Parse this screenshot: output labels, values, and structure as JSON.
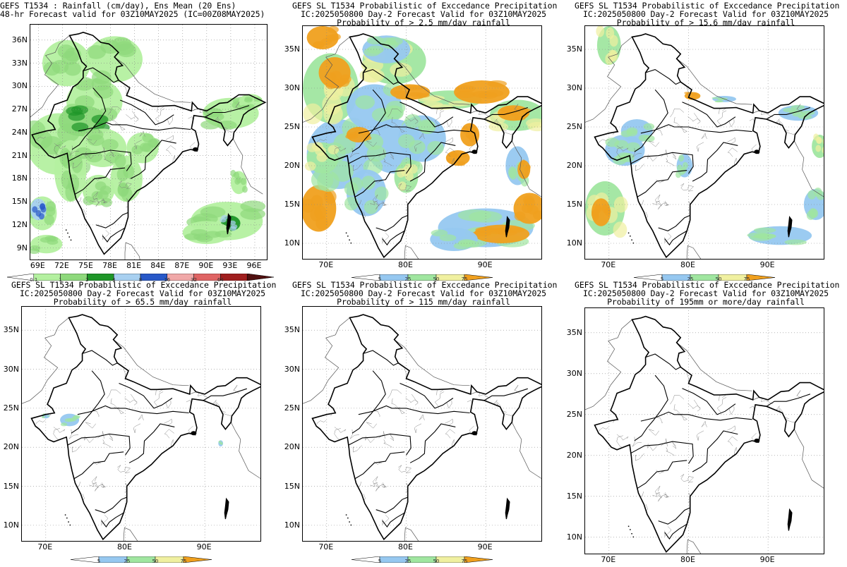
{
  "panels": [
    {
      "id": "mean",
      "title_lines": [
        "GEFS T1534 : Rainfall (cm/day), Ens Mean (20 Ens)",
        "48-hr Forecast valid for 03Z10MAY2025 (IC=00Z08MAY2025)"
      ],
      "lon_ticks": [
        "69E",
        "72E",
        "75E",
        "78E",
        "81E",
        "84E",
        "87E",
        "90E",
        "93E",
        "96E"
      ],
      "lat_ticks": [
        "36N",
        "33N",
        "30N",
        "27N",
        "24N",
        "21N",
        "18N",
        "15N",
        "12N",
        "9N"
      ],
      "colorbar_labels": [
        "0.1",
        "1",
        "2",
        "4",
        "8",
        "16",
        "32",
        "64"
      ],
      "colorbar_colors": [
        "#ffffff",
        "#b4f0a0",
        "#8ed97c",
        "#1e9628",
        "#a8d0f0",
        "#2858c8",
        "#f0a8a8",
        "#e06464",
        "#a01e1e",
        "#501010"
      ]
    },
    {
      "id": "p2_5",
      "title_lines": [
        "GEFS SL T1534 Probabilistic of Exccedance Precipitation",
        "IC:2025050800 Day-2 Forecast Valid for 03Z10MAY2025",
        "Probability of > 2.5 mm/day rainfall"
      ],
      "lon_ticks": [
        "70E",
        "80E",
        "90E"
      ],
      "lat_ticks": [
        "35N",
        "30N",
        "25N",
        "20N",
        "15N",
        "10N"
      ],
      "colorbar_labels": [
        "5",
        "25",
        "50",
        "75"
      ],
      "colorbar_colors": [
        "#ffffff",
        "#96c8f0",
        "#a0e6a0",
        "#f0f0a0",
        "#f0a01e"
      ]
    },
    {
      "id": "p15_6",
      "title_lines": [
        "GEFS SL T1534 Probabilistic of Exccedance Precipitation",
        "IC:2025050800 Day-2 Forecast Valid for 03Z10MAY2025",
        "Probability of > 15.6 mm/day rainfall"
      ],
      "lon_ticks": [
        "70E",
        "80E",
        "90E"
      ],
      "lat_ticks": [
        "35N",
        "30N",
        "25N",
        "20N",
        "15N",
        "10N"
      ],
      "colorbar_labels": [
        "5",
        "25",
        "50",
        "75"
      ],
      "colorbar_colors": [
        "#ffffff",
        "#96c8f0",
        "#a0e6a0",
        "#f0f0a0",
        "#f0a01e"
      ]
    },
    {
      "id": "p65_5",
      "title_lines": [
        "GEFS SL T1534 Probabilistic of Exccedance Precipitation",
        "IC:2025050800 Day-2 Forecast Valid for 03Z10MAY2025",
        "Probability of > 65.5 mm/day rainfall"
      ],
      "lon_ticks": [
        "70E",
        "80E",
        "90E"
      ],
      "lat_ticks": [
        "35N",
        "30N",
        "25N",
        "20N",
        "15N",
        "10N"
      ],
      "colorbar_labels": [
        "5",
        "25",
        "50",
        "75"
      ],
      "colorbar_colors": [
        "#ffffff",
        "#96c8f0",
        "#a0e6a0",
        "#f0f0a0",
        "#f0a01e"
      ]
    },
    {
      "id": "p115",
      "title_lines": [
        "GEFS SL T1534 Probabilistic of Exccedance Precipitation",
        "IC:2025050800 Day-2 Forecast Valid for 03Z10MAY2025",
        "Probability of > 115 mm/day rainfall"
      ],
      "lon_ticks": [
        "70E",
        "80E",
        "90E"
      ],
      "lat_ticks": [
        "35N",
        "30N",
        "25N",
        "20N",
        "15N",
        "10N"
      ],
      "colorbar_labels": [
        "5",
        "25",
        "50",
        "75"
      ],
      "colorbar_colors": [
        "#ffffff",
        "#96c8f0",
        "#a0e6a0",
        "#f0f0a0",
        "#f0a01e"
      ]
    },
    {
      "id": "p195",
      "title_lines": [
        "GEFS SL T1534 Probabilistic of Exccedance Precipitation",
        "IC:2025050800 Day-2 Forecast Valid for 03Z10MAY2025",
        "Probability of 195mm or more/day rainfall"
      ],
      "lon_ticks": [
        "70E",
        "80E",
        "90E"
      ],
      "lat_ticks": [
        "35N",
        "30N",
        "25N",
        "20N",
        "15N",
        "10N"
      ],
      "colorbar_labels": [],
      "colorbar_colors": []
    }
  ]
}
